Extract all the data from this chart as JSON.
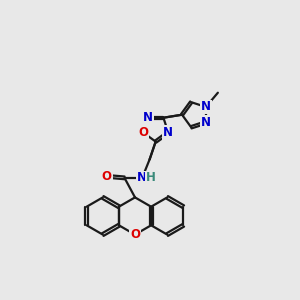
{
  "background_color": "#e8e8e8",
  "bond_color": "#1a1a1a",
  "atom_colors": {
    "O": "#dd0000",
    "N": "#0000cc",
    "H": "#3a8a7a",
    "C": "#1a1a1a"
  },
  "figsize": [
    3.0,
    3.0
  ],
  "dpi": 100,
  "xlim": [
    0,
    10
  ],
  "ylim": [
    0,
    10
  ]
}
